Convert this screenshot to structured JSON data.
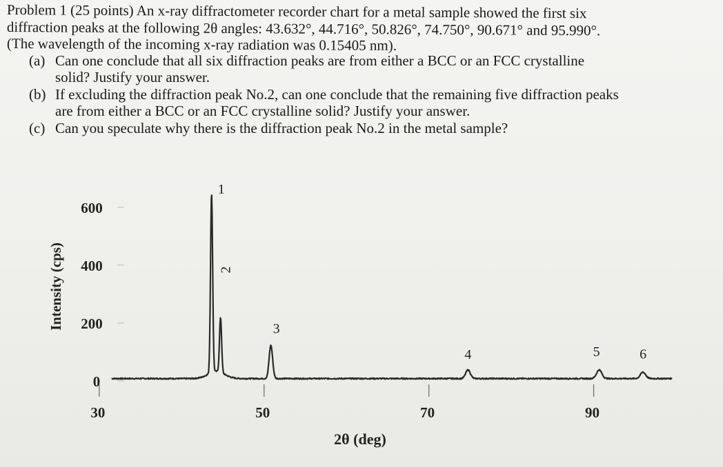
{
  "problem": {
    "line1": "Problem 1 (25 points) An x-ray diffractometer recorder chart for a metal sample showed the first six",
    "line2": "diffraction peaks at the following 2θ angles: 43.632°, 44.716°, 50.826°, 74.750°, 90.671° and 95.990°.",
    "line3": "(The wavelength of the incoming x-ray radiation was 0.15405 nm).",
    "parts": [
      {
        "label": "(a)",
        "text1": "Can one conclude that all six diffraction peaks are from either a BCC or an FCC crystalline",
        "text2": "solid?  Justify your answer."
      },
      {
        "label": "(b)",
        "text1": "If excluding the diffraction peak No.2, can one conclude that the remaining five diffraction peaks",
        "text2": "are from either a BCC or an FCC crystalline solid?  Justify your answer."
      },
      {
        "label": "(c)",
        "text1": "Can you speculate why there is the diffraction peak No.2 in the metal sample?"
      }
    ]
  },
  "chart_data": {
    "type": "line",
    "xlabel": "2θ (deg)",
    "ylabel": "Intensity (cps)",
    "xlim": [
      28,
      100
    ],
    "ylim": [
      0,
      640
    ],
    "xticks": [
      30,
      50,
      70,
      90
    ],
    "yticks": [
      0,
      200,
      400,
      600
    ],
    "baseline": 8,
    "peaks": [
      {
        "label": "1",
        "x": 43.632,
        "y": 620,
        "width": 0.18
      },
      {
        "label": "2",
        "x": 44.716,
        "y": 190,
        "width": 0.18
      },
      {
        "label": "3",
        "x": 50.826,
        "y": 115,
        "width": 0.3
      },
      {
        "label": "4",
        "x": 74.75,
        "y": 30,
        "width": 0.4
      },
      {
        "label": "5",
        "x": 90.671,
        "y": 30,
        "width": 0.45
      },
      {
        "label": "6",
        "x": 95.99,
        "y": 22,
        "width": 0.45
      }
    ],
    "colors": {
      "line": "#2a2a2a",
      "axis": "#222222"
    }
  }
}
